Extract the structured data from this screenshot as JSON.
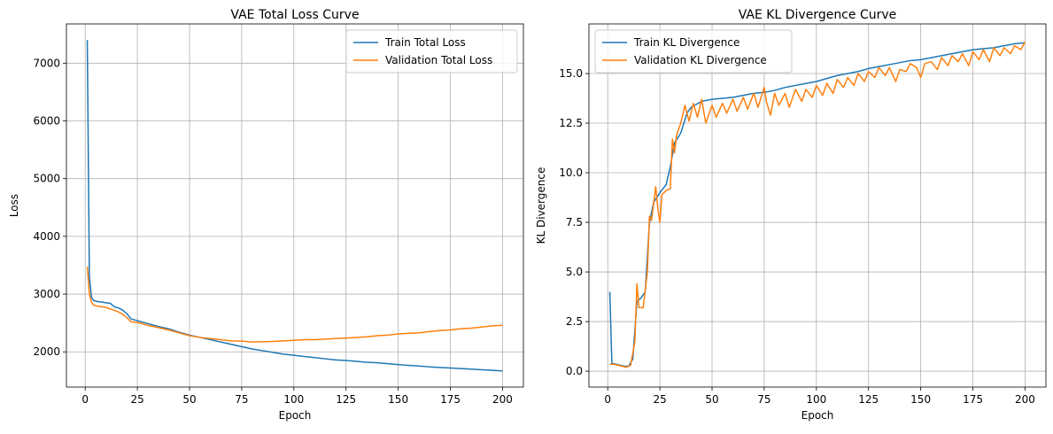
{
  "chart_data": [
    {
      "type": "line",
      "title": "VAE Total Loss Curve",
      "xlabel": "Epoch",
      "ylabel": "Loss",
      "xlim": [
        -9,
        210
      ],
      "ylim": [
        1390,
        7680
      ],
      "xticks": [
        0,
        25,
        50,
        75,
        100,
        125,
        150,
        175,
        200
      ],
      "yticks": [
        2000,
        3000,
        4000,
        5000,
        6000,
        7000
      ],
      "grid": true,
      "legend": "top-right",
      "series": [
        {
          "name": "Train Total Loss",
          "color": "#1f77b4",
          "points": [
            [
              1,
              7400
            ],
            [
              2,
              3300
            ],
            [
              3,
              2950
            ],
            [
              4,
              2890
            ],
            [
              6,
              2870
            ],
            [
              8,
              2860
            ],
            [
              10,
              2850
            ],
            [
              12,
              2840
            ],
            [
              14,
              2780
            ],
            [
              16,
              2760
            ],
            [
              18,
              2720
            ],
            [
              20,
              2660
            ],
            [
              22,
              2570
            ],
            [
              25,
              2540
            ],
            [
              30,
              2490
            ],
            [
              35,
              2440
            ],
            [
              40,
              2400
            ],
            [
              45,
              2340
            ],
            [
              50,
              2290
            ],
            [
              55,
              2250
            ],
            [
              60,
              2210
            ],
            [
              65,
              2170
            ],
            [
              70,
              2130
            ],
            [
              75,
              2090
            ],
            [
              80,
              2050
            ],
            [
              85,
              2020
            ],
            [
              90,
              1990
            ],
            [
              95,
              1960
            ],
            [
              100,
              1940
            ],
            [
              105,
              1920
            ],
            [
              110,
              1900
            ],
            [
              115,
              1880
            ],
            [
              120,
              1860
            ],
            [
              125,
              1850
            ],
            [
              130,
              1835
            ],
            [
              135,
              1820
            ],
            [
              140,
              1810
            ],
            [
              145,
              1795
            ],
            [
              150,
              1780
            ],
            [
              155,
              1765
            ],
            [
              160,
              1755
            ],
            [
              165,
              1740
            ],
            [
              170,
              1730
            ],
            [
              175,
              1720
            ],
            [
              180,
              1710
            ],
            [
              185,
              1700
            ],
            [
              190,
              1690
            ],
            [
              195,
              1680
            ],
            [
              200,
              1670
            ]
          ]
        },
        {
          "name": "Validation Total Loss",
          "color": "#ff7f0e",
          "points": [
            [
              1,
              3480
            ],
            [
              2,
              3000
            ],
            [
              3,
              2860
            ],
            [
              4,
              2810
            ],
            [
              6,
              2790
            ],
            [
              8,
              2780
            ],
            [
              10,
              2770
            ],
            [
              12,
              2740
            ],
            [
              14,
              2720
            ],
            [
              16,
              2690
            ],
            [
              18,
              2650
            ],
            [
              20,
              2590
            ],
            [
              22,
              2520
            ],
            [
              25,
              2510
            ],
            [
              30,
              2460
            ],
            [
              35,
              2420
            ],
            [
              40,
              2380
            ],
            [
              45,
              2330
            ],
            [
              50,
              2280
            ],
            [
              55,
              2250
            ],
            [
              60,
              2230
            ],
            [
              65,
              2210
            ],
            [
              70,
              2190
            ],
            [
              75,
              2185
            ],
            [
              80,
              2170
            ],
            [
              85,
              2175
            ],
            [
              90,
              2180
            ],
            [
              95,
              2190
            ],
            [
              100,
              2200
            ],
            [
              105,
              2210
            ],
            [
              110,
              2210
            ],
            [
              115,
              2220
            ],
            [
              120,
              2230
            ],
            [
              125,
              2240
            ],
            [
              130,
              2250
            ],
            [
              135,
              2260
            ],
            [
              140,
              2280
            ],
            [
              145,
              2290
            ],
            [
              150,
              2310
            ],
            [
              155,
              2320
            ],
            [
              160,
              2330
            ],
            [
              165,
              2350
            ],
            [
              170,
              2370
            ],
            [
              175,
              2380
            ],
            [
              180,
              2400
            ],
            [
              185,
              2410
            ],
            [
              190,
              2430
            ],
            [
              195,
              2450
            ],
            [
              200,
              2460
            ]
          ]
        }
      ]
    },
    {
      "type": "line",
      "title": "VAE KL Divergence Curve",
      "xlabel": "Epoch",
      "ylabel": "KL Divergence",
      "xlim": [
        -9,
        210
      ],
      "ylim": [
        -0.8,
        17.5
      ],
      "xticks": [
        0,
        25,
        50,
        75,
        100,
        125,
        150,
        175,
        200
      ],
      "yticks": [
        0.0,
        2.5,
        5.0,
        7.5,
        10.0,
        12.5,
        15.0
      ],
      "ytick_labels": [
        "0.0",
        "2.5",
        "5.0",
        "7.5",
        "10.0",
        "12.5",
        "15.0"
      ],
      "grid": true,
      "legend": "top-left",
      "series": [
        {
          "name": "Train KL Divergence",
          "color": "#1f77b4",
          "points": [
            [
              1,
              4.0
            ],
            [
              2,
              0.4
            ],
            [
              4,
              0.35
            ],
            [
              6,
              0.3
            ],
            [
              8,
              0.25
            ],
            [
              10,
              0.25
            ],
            [
              12,
              0.6
            ],
            [
              14,
              3.5
            ],
            [
              16,
              3.7
            ],
            [
              18,
              4.0
            ],
            [
              20,
              7.5
            ],
            [
              22,
              8.5
            ],
            [
              25,
              9.0
            ],
            [
              28,
              9.4
            ],
            [
              30,
              10.3
            ],
            [
              32,
              11.5
            ],
            [
              35,
              12.0
            ],
            [
              38,
              13.0
            ],
            [
              40,
              13.3
            ],
            [
              45,
              13.6
            ],
            [
              50,
              13.7
            ],
            [
              55,
              13.75
            ],
            [
              60,
              13.8
            ],
            [
              65,
              13.9
            ],
            [
              70,
              14.0
            ],
            [
              75,
              14.05
            ],
            [
              80,
              14.15
            ],
            [
              85,
              14.3
            ],
            [
              90,
              14.4
            ],
            [
              95,
              14.5
            ],
            [
              100,
              14.6
            ],
            [
              105,
              14.75
            ],
            [
              110,
              14.9
            ],
            [
              115,
              15.0
            ],
            [
              120,
              15.1
            ],
            [
              125,
              15.25
            ],
            [
              130,
              15.35
            ],
            [
              135,
              15.45
            ],
            [
              140,
              15.55
            ],
            [
              145,
              15.65
            ],
            [
              150,
              15.7
            ],
            [
              155,
              15.8
            ],
            [
              160,
              15.9
            ],
            [
              165,
              16.0
            ],
            [
              170,
              16.1
            ],
            [
              175,
              16.2
            ],
            [
              180,
              16.25
            ],
            [
              185,
              16.3
            ],
            [
              190,
              16.4
            ],
            [
              195,
              16.5
            ],
            [
              200,
              16.55
            ]
          ]
        },
        {
          "name": "Validation KL Divergence",
          "color": "#ff7f0e",
          "points": [
            [
              1,
              0.35
            ],
            [
              3,
              0.35
            ],
            [
              5,
              0.3
            ],
            [
              7,
              0.25
            ],
            [
              9,
              0.2
            ],
            [
              11,
              0.3
            ],
            [
              13,
              1.5
            ],
            [
              14,
              4.4
            ],
            [
              15,
              3.2
            ],
            [
              17,
              3.2
            ],
            [
              19,
              5.0
            ],
            [
              20,
              7.8
            ],
            [
              21,
              7.6
            ],
            [
              23,
              9.3
            ],
            [
              24,
              8.2
            ],
            [
              25,
              7.5
            ],
            [
              26,
              8.9
            ],
            [
              28,
              9.1
            ],
            [
              30,
              9.2
            ],
            [
              31,
              11.7
            ],
            [
              32,
              11.0
            ],
            [
              33,
              11.9
            ],
            [
              35,
              12.5
            ],
            [
              37,
              13.4
            ],
            [
              39,
              12.6
            ],
            [
              41,
              13.5
            ],
            [
              43,
              12.8
            ],
            [
              45,
              13.7
            ],
            [
              47,
              12.5
            ],
            [
              50,
              13.4
            ],
            [
              52,
              12.8
            ],
            [
              55,
              13.5
            ],
            [
              57,
              13.0
            ],
            [
              60,
              13.7
            ],
            [
              62,
              13.1
            ],
            [
              65,
              13.8
            ],
            [
              67,
              13.2
            ],
            [
              70,
              14.0
            ],
            [
              72,
              13.3
            ],
            [
              75,
              14.3
            ],
            [
              76,
              13.6
            ],
            [
              78,
              12.9
            ],
            [
              80,
              14.0
            ],
            [
              82,
              13.4
            ],
            [
              85,
              14.0
            ],
            [
              87,
              13.3
            ],
            [
              90,
              14.2
            ],
            [
              93,
              13.6
            ],
            [
              95,
              14.2
            ],
            [
              98,
              13.8
            ],
            [
              100,
              14.4
            ],
            [
              103,
              13.9
            ],
            [
              105,
              14.5
            ],
            [
              108,
              14.0
            ],
            [
              110,
              14.7
            ],
            [
              113,
              14.3
            ],
            [
              115,
              14.8
            ],
            [
              118,
              14.4
            ],
            [
              120,
              15.0
            ],
            [
              123,
              14.6
            ],
            [
              125,
              15.1
            ],
            [
              128,
              14.8
            ],
            [
              130,
              15.3
            ],
            [
              133,
              14.9
            ],
            [
              135,
              15.3
            ],
            [
              138,
              14.6
            ],
            [
              140,
              15.2
            ],
            [
              143,
              15.1
            ],
            [
              145,
              15.5
            ],
            [
              148,
              15.3
            ],
            [
              150,
              14.8
            ],
            [
              152,
              15.5
            ],
            [
              155,
              15.6
            ],
            [
              158,
              15.2
            ],
            [
              160,
              15.8
            ],
            [
              163,
              15.4
            ],
            [
              165,
              15.9
            ],
            [
              168,
              15.6
            ],
            [
              170,
              16.0
            ],
            [
              173,
              15.4
            ],
            [
              175,
              16.1
            ],
            [
              178,
              15.7
            ],
            [
              180,
              16.2
            ],
            [
              183,
              15.6
            ],
            [
              185,
              16.3
            ],
            [
              188,
              15.9
            ],
            [
              190,
              16.3
            ],
            [
              193,
              16.0
            ],
            [
              195,
              16.4
            ],
            [
              198,
              16.2
            ],
            [
              200,
              16.6
            ]
          ]
        }
      ]
    }
  ]
}
